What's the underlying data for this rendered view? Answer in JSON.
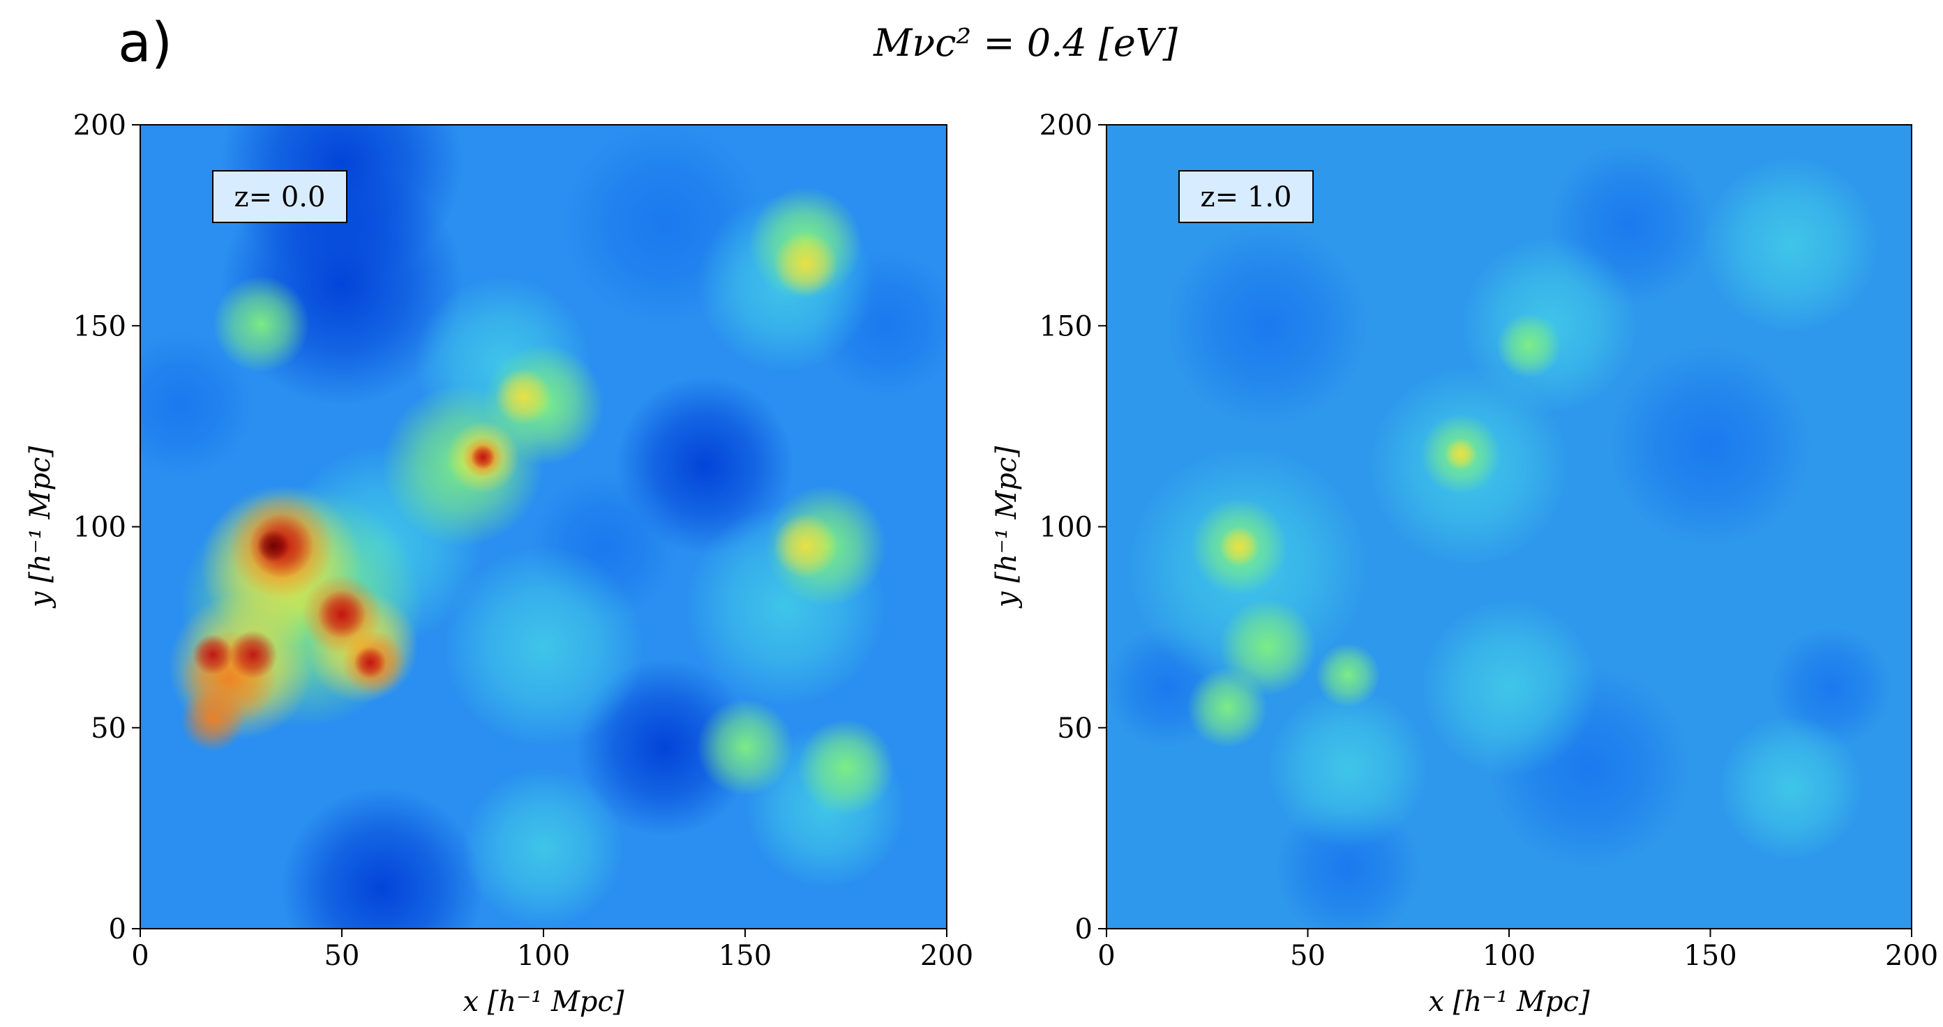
{
  "figure": {
    "label": "a)",
    "title": "Mνc² = 0.4 [eV]"
  },
  "chart_data": [
    {
      "type": "image",
      "annotation": "z= 0.0",
      "xlabel": "x [h⁻¹ Mpc]",
      "ylabel": "y [h⁻¹ Mpc]",
      "xlim": [
        0,
        200
      ],
      "ylim": [
        0,
        200
      ],
      "xticks": [
        0,
        50,
        100,
        150,
        200
      ],
      "yticks": [
        0,
        50,
        100,
        150,
        200
      ]
    },
    {
      "type": "image",
      "annotation": "z= 1.0",
      "xlabel": "x [h⁻¹ Mpc]",
      "ylabel": "y [h⁻¹ Mpc]",
      "xlim": [
        0,
        200
      ],
      "ylim": [
        0,
        200
      ],
      "xticks": [
        0,
        50,
        100,
        150,
        200
      ],
      "yticks": [
        0,
        50,
        100,
        150,
        200
      ]
    }
  ]
}
